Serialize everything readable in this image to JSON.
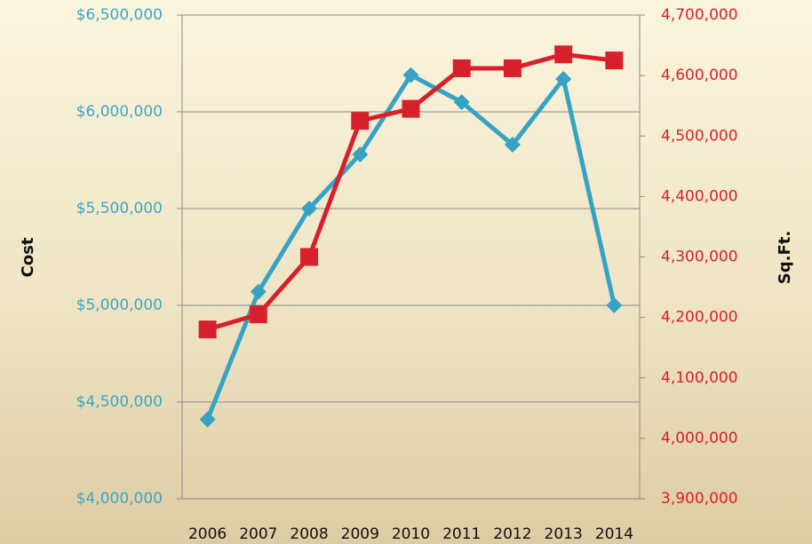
{
  "chart_data": {
    "type": "line",
    "categories": [
      "2006",
      "2007",
      "2008",
      "2009",
      "2010",
      "2011",
      "2012",
      "2013",
      "2014"
    ],
    "ylabel": "Cost",
    "y2label": "Sq.Ft.",
    "series": [
      {
        "name": "Cost",
        "color": "#36a3c4",
        "marker": "diamond",
        "values": [
          4410000,
          5070000,
          5500000,
          5780000,
          6190000,
          6050000,
          5830000,
          6170000,
          5000000
        ]
      },
      {
        "name": "Sq.Ft.",
        "color": "#d7202b",
        "marker": "square",
        "axis": "y2",
        "values": [
          4180000,
          4205000,
          4300000,
          4525000,
          4545000,
          4612000,
          4612000,
          4635000,
          4625000
        ]
      }
    ],
    "ylim": [
      4000000,
      6500000
    ],
    "yticks": [
      {
        "value": 4000000,
        "label": "$4,000,000"
      },
      {
        "value": 4500000,
        "label": "$4,500,000"
      },
      {
        "value": 5000000,
        "label": "$5,000,000"
      },
      {
        "value": 5500000,
        "label": "$5,500,000"
      },
      {
        "value": 6000000,
        "label": "$6,000,000"
      },
      {
        "value": 6500000,
        "label": "$6,500,000"
      }
    ],
    "y2lim": [
      3900000,
      4700000
    ],
    "y2ticks": [
      {
        "value": 3900000,
        "label": "3,900,000"
      },
      {
        "value": 4000000,
        "label": "4,000,000"
      },
      {
        "value": 4100000,
        "label": "4,100,000"
      },
      {
        "value": 4200000,
        "label": "4,200,000"
      },
      {
        "value": 4300000,
        "label": "4,300,000"
      },
      {
        "value": 4400000,
        "label": "4,400,000"
      },
      {
        "value": 4500000,
        "label": "4,500,000"
      },
      {
        "value": 4600000,
        "label": "4,600,000"
      },
      {
        "value": 4700000,
        "label": "4,700,000"
      }
    ],
    "grid": true
  }
}
